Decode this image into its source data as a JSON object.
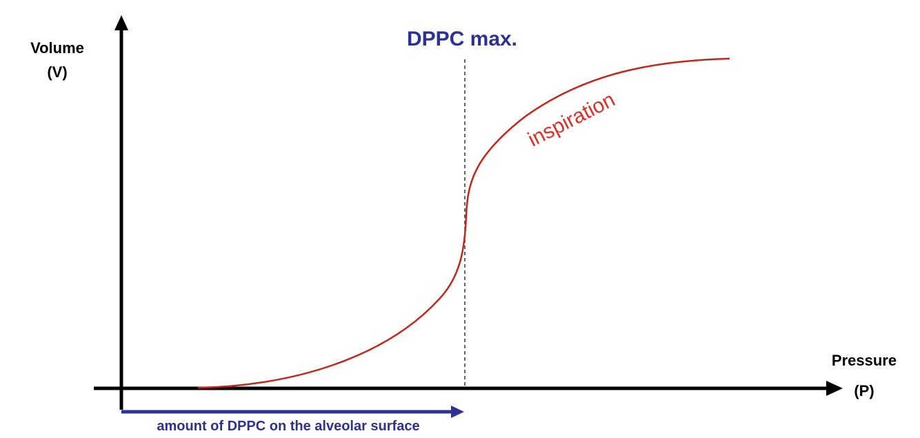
{
  "y_axis": {
    "label_line1": "Volume",
    "label_line2": "(V)"
  },
  "x_axis": {
    "label_line1": "Pressure",
    "label_line2": "(P)"
  },
  "marker": {
    "label": "DPPC max.",
    "color": "#2e3192"
  },
  "curve": {
    "label": "inspiration",
    "color": "#d9322a",
    "line_color": "#c0261c"
  },
  "dppc_arrow": {
    "label": "amount of DPPC on the alveolar surface",
    "color": "#2e3192"
  },
  "axis_color": "#000000"
}
